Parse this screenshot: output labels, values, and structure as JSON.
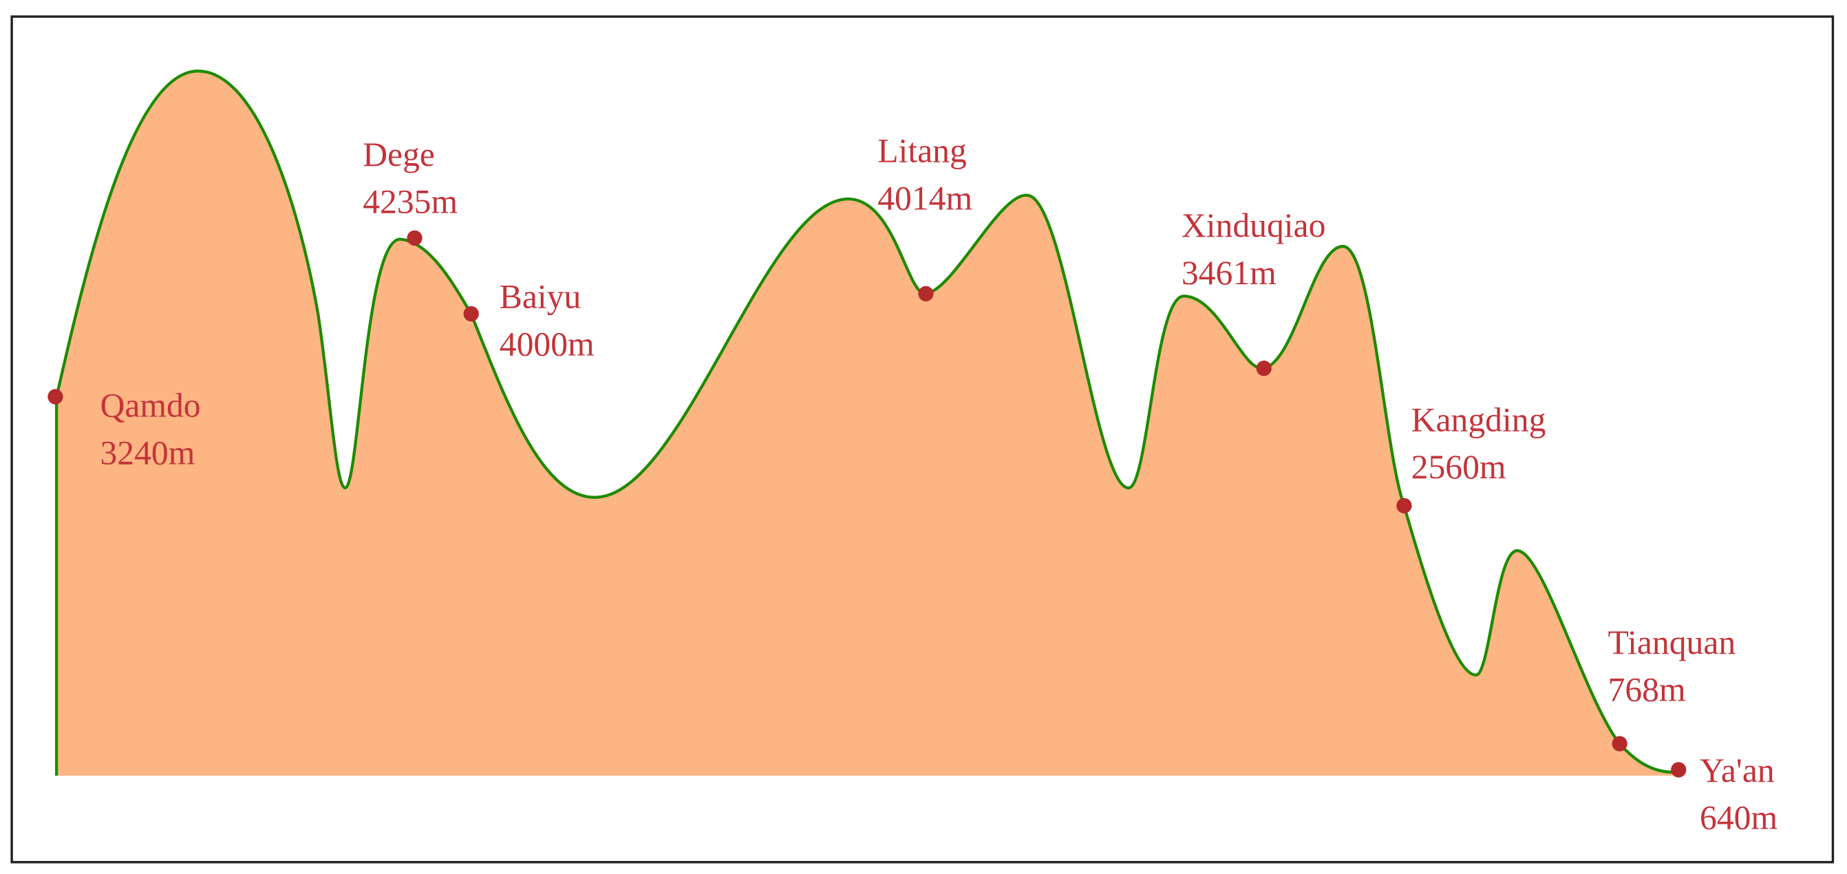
{
  "points": [
    {
      "name": "Qamdo",
      "elevation": "3240m"
    },
    {
      "name": "Dege",
      "elevation": "4235m"
    },
    {
      "name": "Baiyu",
      "elevation": "4000m"
    },
    {
      "name": "Litang",
      "elevation": "4014m"
    },
    {
      "name": "Xinduqiao",
      "elevation": "3461m"
    },
    {
      "name": "Kangding",
      "elevation": "2560m"
    },
    {
      "name": "Tianquan",
      "elevation": "768m"
    },
    {
      "name": "Ya'an",
      "elevation": "640m"
    }
  ]
}
